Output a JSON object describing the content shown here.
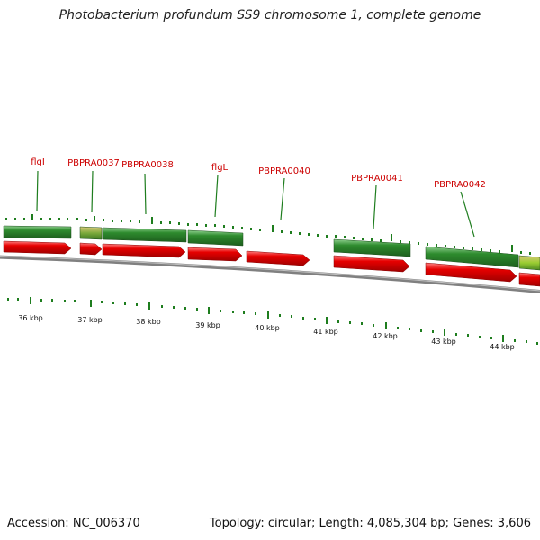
{
  "header": {
    "title": "Photobacterium profundum SS9 chromosome 1, complete genome"
  },
  "footer": {
    "accession": "Accession: NC_006370",
    "summary": "Topology: circular; Length: 4,085,304 bp; Genes: 3,606"
  },
  "colors": {
    "green": "#2e8b2e",
    "red": "#e60000",
    "tick": "#1e7d1e",
    "label": "#cc0000",
    "backbone": "#808080"
  },
  "gene_labels": [
    "flgI",
    "PBPRA0037",
    "PBPRA0038",
    "flgL",
    "PBPRA0040",
    "PBPRA0041",
    "PBPRA0042"
  ],
  "kbp_labels": [
    "36 kbp",
    "37 kbp",
    "38 kbp",
    "39 kbp",
    "40 kbp",
    "41 kbp",
    "42 kbp",
    "43 kbp",
    "44 kbp"
  ]
}
